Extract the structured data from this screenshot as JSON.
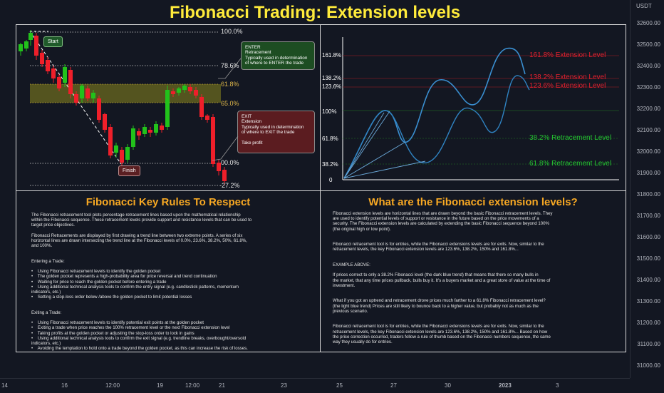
{
  "title": "Fibonacci Trading: Extension levels",
  "price_axis": {
    "currency": "USDT",
    "labels": [
      "32600.00",
      "32500.00",
      "32400.00",
      "32300.00",
      "32200.00",
      "32100.00",
      "32000.00",
      "31900.00",
      "31800.00",
      "31700.00",
      "31600.00",
      "31500.00",
      "31400.00",
      "31300.00",
      "31200.00",
      "31100.00",
      "31000.00"
    ]
  },
  "time_axis": {
    "labels": [
      "14",
      "16",
      "12:00",
      "19",
      "12:00",
      "21",
      "23",
      "25",
      "27",
      "30",
      "2023",
      "3"
    ]
  },
  "retracement_chart": {
    "levels": [
      "100.0%",
      "78.6%",
      "61.8%",
      "65.0%",
      "00.0%",
      "-27.2%"
    ],
    "start_label": "Start",
    "finish_label": "Finish",
    "enter_note": "ENTER\nRetracement\nTypically used in determination\nof where to ENTER the trade",
    "exit_note": "EXIT\nExtension\nTypically used in determination\nof where to EXIT the trade\n\nTake profit"
  },
  "extension_chart": {
    "left_levels": [
      "161.8%",
      "138.2%",
      "123.6%",
      "100%",
      "61.8%",
      "38.2%",
      "0"
    ],
    "ext_161": "161.8% Extension Level",
    "ext_138": "138.2% Extension Level",
    "ext_123": "123.6% Extension Level",
    "ret_38": "38.2% Retracement Level",
    "ret_61": "61.8% Retracement Level"
  },
  "colors": {
    "bull": "#26a69a",
    "bull_bright": "#22c21b",
    "bear": "#ef1f2a",
    "extension_red": "#e5202e",
    "retracement_green": "#24c431",
    "title_yellow": "#ffeb3b",
    "section_orange": "#f7a823",
    "line_blue": "#3a8fd1"
  },
  "left_section": {
    "heading": "Fibonacci Key Rules To Respect",
    "text": "The Fibonacci retracement tool plots percentage retracement lines based upon the mathematical relationship\nwithin the Fibonacci sequence. These retracement levels provide support and resistance levels that can be used to\ntarget price objectives.\n\nFibonacci Retracements are displayed by first drawing a trend line between two extreme points. A series of six\nhorizontal lines are drawn intersecting the trend line at the Fibonacci levels of 0.0%, 23.6%, 38.2%, 50%, 61.8%,\nand 100%.\n\n\nEntering a Trade:\n\n•    Using Fibonacci retracement levels to identify the golden pocket\n•    The golden pocket represents a high-probability area for price reversal and trend continuation\n•    Waiting for price to reach the golden pocket before entering a trade\n•    Using additional technical analysis tools to confirm the entry signal (e.g. candlestick patterns, momentum\nindicators, etc.)\n•    Setting a stop-loss order below /above the golden pocket to limit potential losses\n\n\nExiting a Trade:\n\n•    Using Fibonacci retracement levels to identify potential exit points at the golden pocket\n•    Exiting a trade when price reaches the 100% retracement level or the next Fibonacci extension level\n•    Taking profits at the golden pocket or adjusting the stop-loss order to lock in gains\n•    Using additional technical analysis tools to confirm the exit signal (e.g. trendline breaks, overbought/oversold\nindicators, etc.)\n•    Avoiding the temptation to hold onto a trade beyond the golden pocket, as this can increase the risk of losses."
  },
  "right_section": {
    "heading": "What are the Fibonacci extension levels?",
    "text": "Fibonacci extension levels are horizontal lines that are drawn beyond the basic Fibonacci retracement levels. They\nare used to identify potential levels of support or resistance in the future based on the price movements of a\nsecurity. The Fibonacci extension levels are calculated by extending the basic Fibonacci sequence beyond 100%\n(the original high or low point).\n\n\nFibonacci retracement tool is for entries, while the Fibonacci extensions levels are for exits. Now, similar to the\nretracement levels, the key Fibonacci extension levels are 123.6%, 138.2%, 150% and 161.8%...\n\n\nEXAMPLE ABOVE:\n\nIf prices correct to only a 38.2% Fibonacci level (the dark blue trend) that means that there so many bulls in\nthe market, that any time prices pullback, bulls buy it. It's a buyers market and a great store of value at the time of\ninvestment.\n\n\nWhat if you got an uptrend and retracement drove prices much farther to a 61.8% Fibonacci retracement level?\n(the light blue trend) Prices are still likely to bounce back to a higher value, but probably not as much as the\nprevious scenario.\n\n\nFibonacci retracement tool is for entries, while the Fibonacci extensions levels are for exits. Now, similar to the\nretracement levels, the key Fibonacci extension levels are 123.6%, 138.2%, 150% and 161.8%... Based on how\nthe price correction occurred, traders follow a rule of thumb based on the Fibonacci numbers sequence, the same\nway they usually do for entries."
  }
}
